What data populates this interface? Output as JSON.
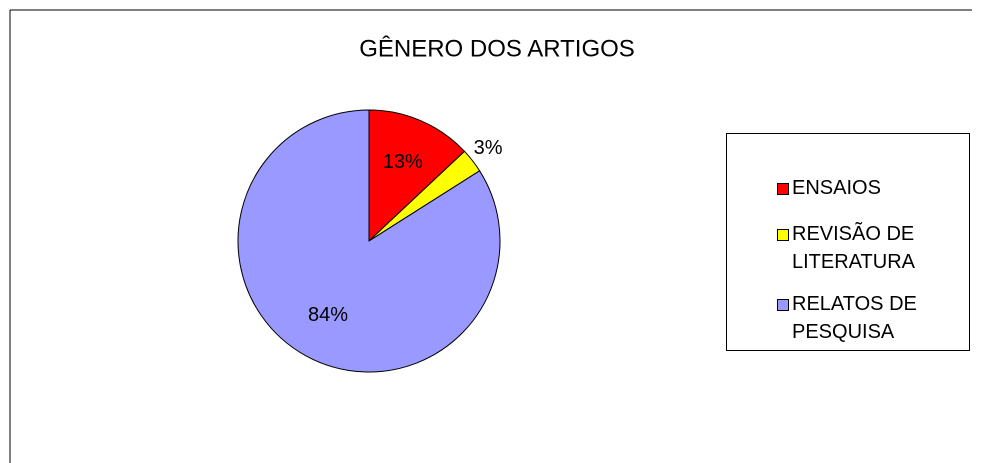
{
  "chart_data": {
    "type": "pie",
    "title": "GÊNERO DOS ARTIGOS",
    "categories": [
      "ENSAIOS",
      "REVISÃO DE LITERATURA",
      "RELATOS DE PESQUISA"
    ],
    "values": [
      13,
      3,
      84
    ],
    "value_labels": [
      "13%",
      "3%",
      "84%"
    ],
    "colors": [
      "#ff0000",
      "#ffff00",
      "#9999ff"
    ],
    "legend": "right"
  }
}
